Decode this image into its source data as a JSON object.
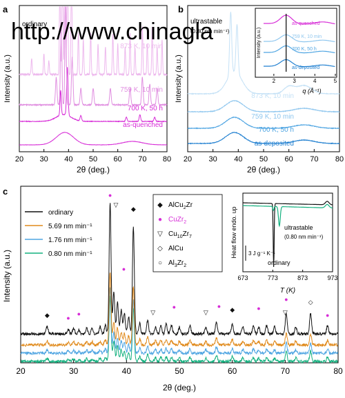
{
  "watermark": "http://www.chinagla",
  "colors": {
    "magenta": "#d72dd7",
    "magenta_mid": "#e08ee0",
    "magenta_light": "#edb8ed",
    "blue_dark": "#1f7fd0",
    "blue_mid": "#4fa5e2",
    "blue_light": "#8ec6ee",
    "blue_pale": "#c4e1f6",
    "orange": "#e08a1c",
    "teal": "#12b07e",
    "black": "#111111"
  },
  "chart_data": [
    {
      "panel": "a",
      "type": "line",
      "xlabel": "2θ (deg.)",
      "ylabel": "Intensity (a.u.)",
      "xlim": [
        20,
        80
      ],
      "xticks": [
        "20",
        "30",
        "40",
        "50",
        "60",
        "70",
        "80"
      ],
      "series": [
        {
          "name": "as-quenched",
          "baseline": 0.05,
          "peaks": [
            [
              38.5,
              0.09,
              3.5
            ],
            [
              66,
              0.025,
              4
            ]
          ],
          "noise": 0.002,
          "color_key": "magenta"
        },
        {
          "name": "700 K, 50 h",
          "baseline": 0.22,
          "peaks": [
            [
              38,
              0.05,
              3
            ],
            [
              39.5,
              0.35,
              0.3
            ],
            [
              36.8,
              0.18,
              0.25
            ],
            [
              45,
              0.04,
              0.3
            ],
            [
              63.5,
              0.03,
              0.3
            ],
            [
              69,
              0.05,
              0.3
            ],
            [
              75,
              0.03,
              0.3
            ]
          ],
          "noise": 0.004,
          "color_key": "magenta"
        },
        {
          "name": "759 K, 10 min",
          "baseline": 0.34,
          "peaks": [
            [
              37,
              0.6,
              0.3
            ],
            [
              38.8,
              1.0,
              0.25
            ],
            [
              41.5,
              0.35,
              0.3
            ],
            [
              35,
              0.2,
              0.3
            ],
            [
              45,
              0.12,
              0.3
            ],
            [
              50,
              0.12,
              0.3
            ],
            [
              57,
              0.12,
              0.3
            ],
            [
              65,
              0.12,
              0.3
            ],
            [
              70,
              0.2,
              0.3
            ],
            [
              73,
              0.15,
              0.3
            ],
            [
              76,
              0.12,
              0.3
            ]
          ],
          "noise": 0.008,
          "color_key": "magenta_mid"
        },
        {
          "name": "873 K, 10 min",
          "baseline": 0.56,
          "peaks": [
            [
              25,
              0.12,
              0.2
            ],
            [
              30,
              0.15,
              0.2
            ],
            [
              32,
              0.1,
              0.2
            ],
            [
              36.5,
              0.8,
              0.2
            ],
            [
              37.5,
              1.2,
              0.2
            ],
            [
              38.5,
              1.2,
              0.2
            ],
            [
              39.6,
              1.2,
              0.2
            ],
            [
              41.2,
              0.9,
              0.2
            ],
            [
              44,
              0.3,
              0.2
            ],
            [
              46,
              0.25,
              0.2
            ],
            [
              49,
              0.3,
              0.2
            ],
            [
              52,
              0.22,
              0.2
            ],
            [
              55,
              0.2,
              0.2
            ],
            [
              58,
              0.3,
              0.2
            ],
            [
              60,
              0.22,
              0.2
            ],
            [
              63,
              0.2,
              0.2
            ],
            [
              65,
              0.3,
              0.2
            ],
            [
              67,
              0.2,
              0.2
            ],
            [
              70,
              0.35,
              0.2
            ],
            [
              72,
              0.22,
              0.2
            ],
            [
              74,
              0.35,
              0.2
            ],
            [
              76,
              0.2,
              0.2
            ],
            [
              78,
              0.25,
              0.2
            ]
          ],
          "noise": 0.015,
          "color_key": "magenta_light"
        }
      ],
      "annotations": [
        "ordinary"
      ]
    },
    {
      "panel": "b",
      "type": "line",
      "xlabel": "2θ (deg.)",
      "ylabel": "Intensity (a.u.)",
      "xlim": [
        20,
        80
      ],
      "xticks": [
        "20",
        "30",
        "40",
        "50",
        "60",
        "70",
        "80"
      ],
      "series": [
        {
          "name": "as-deposited",
          "baseline": 0.06,
          "peaks": [
            [
              38.5,
              0.08,
              3.5
            ],
            [
              66,
              0.025,
              4
            ]
          ],
          "color_key": "blue_dark"
        },
        {
          "name": "700 K, 50 h",
          "baseline": 0.17,
          "peaks": [
            [
              38.5,
              0.08,
              3.5
            ],
            [
              66,
              0.025,
              4
            ]
          ],
          "color_key": "blue_mid"
        },
        {
          "name": "759 K, 10 min",
          "baseline": 0.29,
          "peaks": [
            [
              38.5,
              0.08,
              3.5
            ],
            [
              66,
              0.025,
              4
            ]
          ],
          "color_key": "blue_light"
        },
        {
          "name": "873 K, 10 min",
          "baseline": 0.42,
          "peaks": [
            [
              38.5,
              0.16,
              3
            ],
            [
              37,
              0.45,
              0.4
            ],
            [
              39.5,
              0.35,
              0.4
            ],
            [
              60,
              0.05,
              2
            ],
            [
              66,
              0.06,
              3
            ]
          ],
          "color_key": "blue_pale"
        }
      ],
      "annotations": [
        "ultrastable",
        "(0.80 nm min⁻¹)"
      ],
      "inset": {
        "type": "line",
        "xlabel": "q (Å⁻¹)",
        "ylabel": "Intensity (a.u.)",
        "xlim": [
          1.5,
          5
        ],
        "xticks": [
          "2",
          "3",
          "4",
          "5"
        ],
        "marker_q": 2.6,
        "series": [
          {
            "name": "as-deposited",
            "color_key": "blue_dark"
          },
          {
            "name": "700 K, 50 h",
            "color_key": "blue_mid"
          },
          {
            "name": "759 K, 10 min",
            "color_key": "blue_light"
          },
          {
            "name": "as-quenched",
            "color_key": "magenta"
          }
        ]
      }
    },
    {
      "panel": "c",
      "type": "line",
      "xlabel": "2θ (deg.)",
      "ylabel": "Intensity (a.u.)",
      "xlim": [
        20,
        80
      ],
      "xticks": [
        "20",
        "30",
        "40",
        "50",
        "60",
        "70",
        "80"
      ],
      "series": [
        {
          "name": "ordinary",
          "color_key": "black"
        },
        {
          "name": "5.69 nm min⁻¹",
          "color_key": "orange"
        },
        {
          "name": "1.76 nm min⁻¹",
          "color_key": "blue_mid"
        },
        {
          "name": "0.80 nm min⁻¹",
          "color_key": "teal"
        }
      ],
      "phase_legend": [
        {
          "symbol": "◆",
          "label": "AlCu",
          "sub": "2",
          "label2": "Zr",
          "sub2": "",
          "color_key": "black"
        },
        {
          "symbol": "●",
          "label": "CuZr",
          "sub": "2",
          "label2": "",
          "sub2": "",
          "color_key": "magenta"
        },
        {
          "symbol": "▽",
          "label": "Cu",
          "sub": "10",
          "label2": "Zr",
          "sub2": "7",
          "color_key": "black"
        },
        {
          "symbol": "◇",
          "label": "AlCu",
          "sub": "",
          "label2": "",
          "sub2": "",
          "color_key": "black"
        },
        {
          "symbol": "○",
          "label": "Al",
          "sub": "3",
          "label2": "Zr",
          "sub2": "2",
          "color_key": "black"
        }
      ],
      "inset": {
        "type": "line",
        "xlabel": "T (K)",
        "ylabel": "Heat flow endo. up",
        "xlim": [
          673,
          973
        ],
        "xticks": [
          "673",
          "773",
          "873",
          "973"
        ],
        "scale_bar": "3 J g⁻¹ K⁻¹",
        "labels": [
          "ultrastable",
          "(0.80 nm min⁻¹)",
          "ordinary"
        ]
      }
    }
  ]
}
